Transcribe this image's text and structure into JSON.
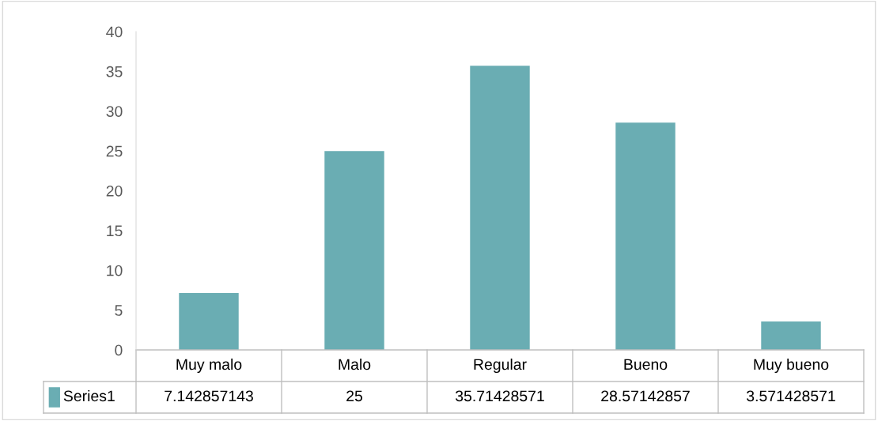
{
  "chart_data": {
    "type": "bar",
    "categories": [
      "Muy malo",
      "Malo",
      "Regular",
      "Bueno",
      "Muy bueno"
    ],
    "series": [
      {
        "name": "Series1",
        "color": "#6aadb3",
        "values": [
          7.142857143,
          25,
          35.71428571,
          28.57142857,
          3.571428571
        ]
      }
    ],
    "ylim": [
      0,
      40
    ],
    "yticks": [
      0,
      5,
      10,
      15,
      20,
      25,
      30,
      35,
      40
    ],
    "grid": false,
    "data_labels": true,
    "legend": "bottom"
  }
}
